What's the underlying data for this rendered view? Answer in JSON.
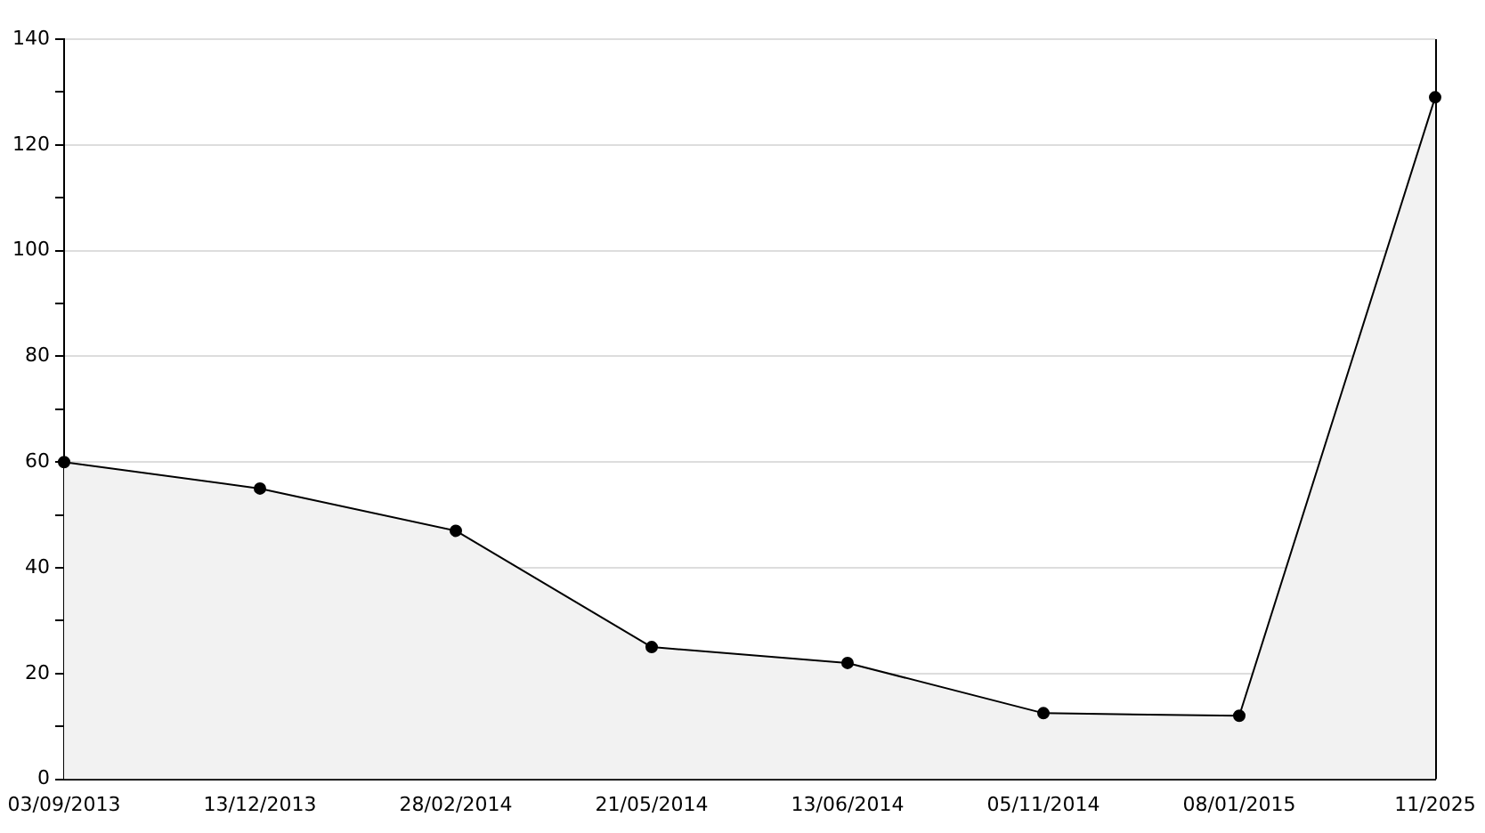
{
  "chart_data": {
    "type": "area",
    "categories": [
      "03/09/2013",
      "13/12/2013",
      "28/02/2014",
      "21/05/2014",
      "13/06/2014",
      "05/11/2014",
      "08/01/2015",
      "11/2025"
    ],
    "series": [
      {
        "color": "#000000",
        "values": [
          60,
          55,
          47,
          25,
          22,
          12.5,
          12,
          129
        ]
      }
    ],
    "ylim": [
      0,
      140
    ],
    "yticks": [
      0,
      {
        "value": 10,
        "label": null
      },
      20,
      {
        "value": 30,
        "label": null
      },
      40,
      {
        "value": 50,
        "label": null
      },
      60,
      {
        "value": 70,
        "label": null
      },
      80,
      {
        "value": 90,
        "label": null
      },
      100,
      {
        "value": 110,
        "label": null
      },
      120,
      {
        "value": 130,
        "label": null
      },
      140
    ],
    "grid": "y",
    "legend": false,
    "marker": "circle",
    "line_style": "solid"
  }
}
